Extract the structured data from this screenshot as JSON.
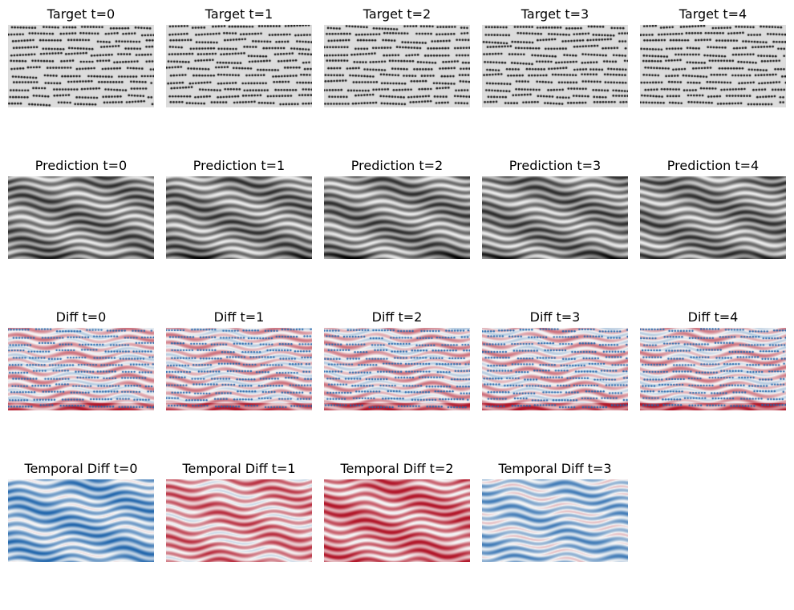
{
  "rows": [
    {
      "kind": "target",
      "cmap": "gray",
      "titles": [
        "Target t=0",
        "Target t=1",
        "Target t=2",
        "Target t=3",
        "Target t=4"
      ]
    },
    {
      "kind": "prediction",
      "cmap": "gray",
      "titles": [
        "Prediction t=0",
        "Prediction t=1",
        "Prediction t=2",
        "Prediction t=3",
        "Prediction t=4"
      ]
    },
    {
      "kind": "diff",
      "cmap": "RdBu",
      "titles": [
        "Diff t=0",
        "Diff t=1",
        "Diff t=2",
        "Diff t=3",
        "Diff t=4"
      ]
    },
    {
      "kind": "temporal",
      "cmap": "RdBu",
      "titles": [
        "Temporal Diff t=0",
        "Temporal Diff t=1",
        "Temporal Diff t=2",
        "Temporal Diff t=3"
      ]
    }
  ],
  "colors": {
    "target_bg": "#dcdcdc",
    "target_dot": "#111111",
    "red": "#b2182b",
    "blue": "#2166ac"
  },
  "chart_data": {
    "type": "heatmap",
    "layout": "4 rows x 5 columns of image panels, axes hidden",
    "temporal_bias": [
      -0.45,
      0.35,
      0.5,
      -0.3
    ]
  }
}
